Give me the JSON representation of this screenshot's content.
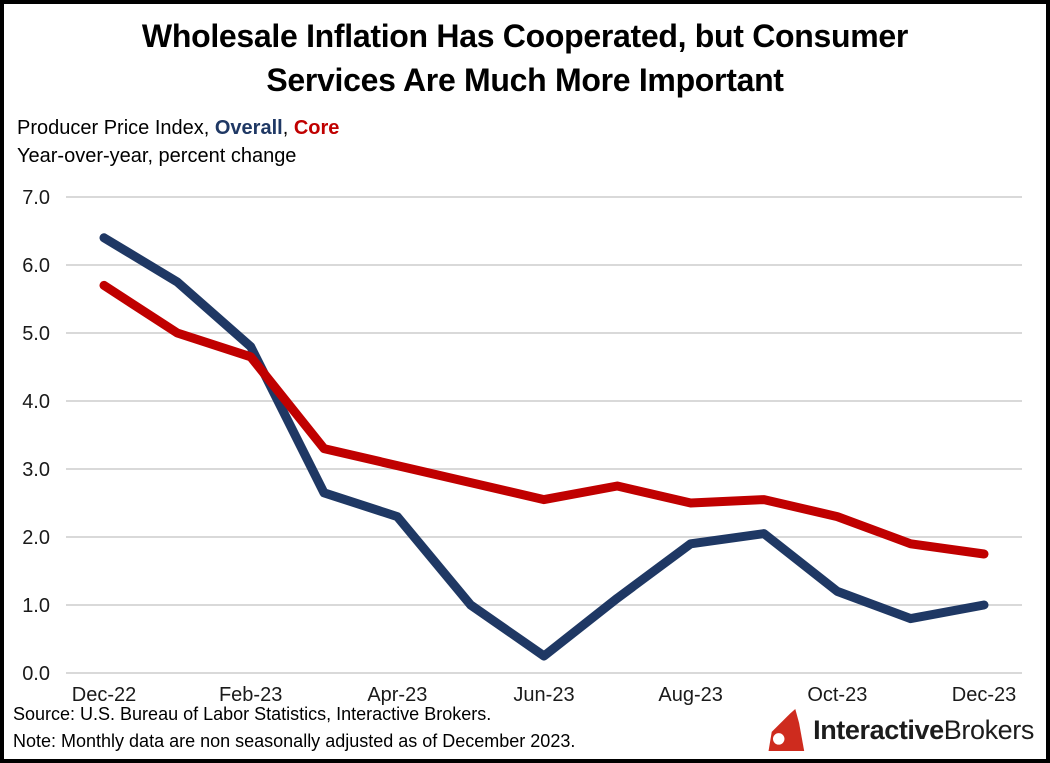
{
  "title": {
    "line1": "Wholesale Inflation Has Cooperated, but Consumer",
    "line2": "Services Are Much More Important"
  },
  "subtitle": {
    "prefix": "Producer Price Index, ",
    "overall_label": "Overall",
    "separator": ", ",
    "core_label": "Core",
    "line2": "Year-over-year, percent change"
  },
  "footer": {
    "source": "Source: U.S. Bureau of Labor Statistics, Interactive Brokers.",
    "note": "Note: Monthly data are non seasonally adjusted as of December 2023."
  },
  "logo": {
    "icon": "interactive-brokers-sail-icon",
    "icon_color": "#ce2b1e",
    "bold": "Interactive",
    "regular": "Brokers"
  },
  "colors": {
    "overall": "#1f3864",
    "core": "#c00000",
    "gridline": "#d9d9d9",
    "axis_text": "#1a1a1a"
  },
  "chart_data": {
    "type": "line",
    "x": [
      "Dec-22",
      "Jan-23",
      "Feb-23",
      "Mar-23",
      "Apr-23",
      "May-23",
      "Jun-23",
      "Jul-23",
      "Aug-23",
      "Sep-23",
      "Oct-23",
      "Nov-23",
      "Dec-23"
    ],
    "x_tick_every": 2,
    "x_tick_labels": [
      "Dec-22",
      "Feb-23",
      "Apr-23",
      "Jun-23",
      "Aug-23",
      "Oct-23",
      "Dec-23"
    ],
    "series": [
      {
        "name": "Overall",
        "color": "#1f3864",
        "values": [
          6.4,
          5.75,
          4.8,
          2.65,
          2.3,
          1.0,
          0.25,
          1.1,
          1.9,
          2.05,
          1.2,
          0.8,
          1.0
        ]
      },
      {
        "name": "Core",
        "color": "#c00000",
        "values": [
          5.7,
          5.0,
          4.65,
          3.3,
          3.05,
          2.8,
          2.55,
          2.75,
          2.5,
          2.55,
          2.3,
          1.9,
          1.75
        ]
      }
    ],
    "ylim": [
      0.0,
      7.0
    ],
    "ytick_step": 1.0,
    "ytick_decimals": 1,
    "title": "Wholesale Inflation Has Cooperated, but Consumer Services Are Much More Important",
    "xlabel": "",
    "ylabel": "Year-over-year, percent change",
    "grid": "horizontal",
    "legend_position": "inline-in-subtitle"
  }
}
